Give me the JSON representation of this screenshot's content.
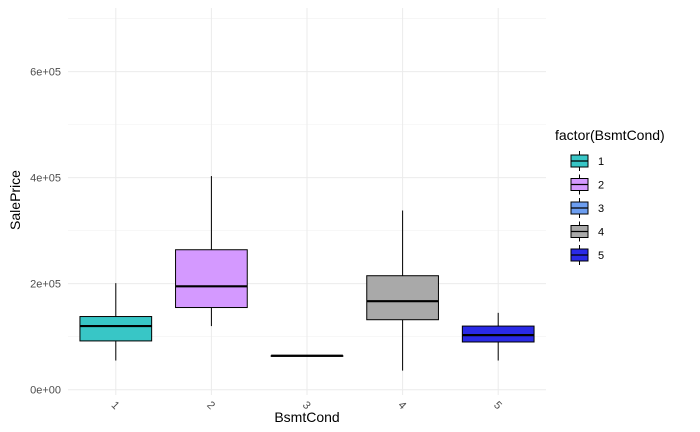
{
  "chart_data": {
    "type": "boxplot",
    "title": "",
    "xlabel": "BsmtCond",
    "ylabel": "SalePrice",
    "ylim": [
      -10000,
      720000
    ],
    "yticks": [
      0,
      200000,
      400000,
      600000
    ],
    "ytick_labels": [
      "0e+00",
      "2e+05",
      "4e+05",
      "6e+05"
    ],
    "grid": true,
    "legend": {
      "title": "factor(BsmtCond)",
      "position": "right"
    },
    "categories": [
      "1",
      "2",
      "3",
      "4",
      "5"
    ],
    "boxes": [
      {
        "category": "1",
        "whisker_low": 55000,
        "q1": 92000,
        "median": 120000,
        "q3": 138000,
        "whisker_high": 201000,
        "color": "#38C6C6"
      },
      {
        "category": "2",
        "whisker_low": 120000,
        "q1": 155000,
        "median": 195000,
        "q3": 264000,
        "whisker_high": 403000,
        "color": "#D499FF"
      },
      {
        "category": "3",
        "whisker_low": 64000,
        "q1": 64000,
        "median": 64000,
        "q3": 64000,
        "whisker_high": 64000,
        "color": "#6C9EF1"
      },
      {
        "category": "4",
        "whisker_low": 36000,
        "q1": 132000,
        "median": 167000,
        "q3": 215000,
        "whisker_high": 338000,
        "color": "#A9A9A9"
      },
      {
        "category": "5",
        "whisker_low": 55000,
        "q1": 90000,
        "median": 103000,
        "q3": 120000,
        "whisker_high": 145000,
        "color": "#2A2AE6"
      }
    ]
  }
}
